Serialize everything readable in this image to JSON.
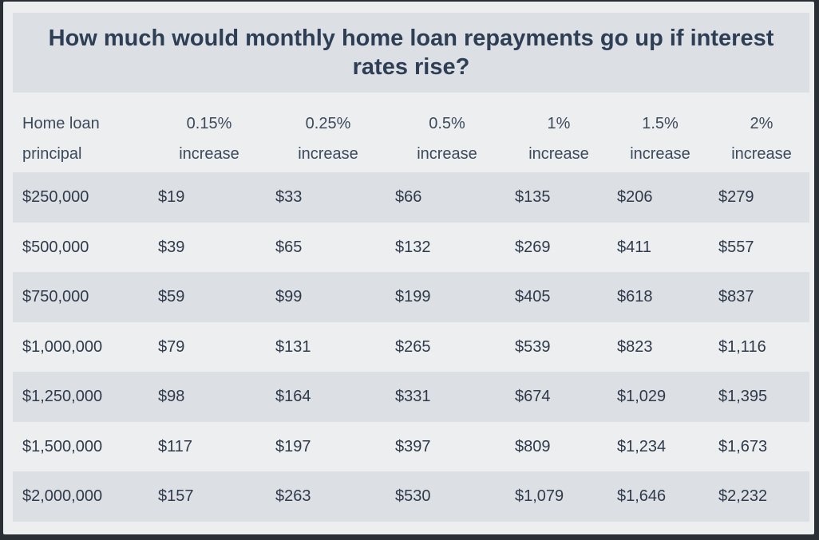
{
  "chart_data": {
    "type": "table",
    "title": "How much would monthly home loan repayments go up if interest rates rise?",
    "columns": [
      {
        "line1": "Home loan",
        "line2": "principal"
      },
      {
        "line1": "0.15%",
        "line2": "increase"
      },
      {
        "line1": "0.25%",
        "line2": "increase"
      },
      {
        "line1": "0.5%",
        "line2": "increase"
      },
      {
        "line1": "1%",
        "line2": "increase"
      },
      {
        "line1": "1.5%",
        "line2": "increase"
      },
      {
        "line1": "2%",
        "line2": "increase"
      }
    ],
    "rows": [
      [
        "$250,000",
        "$19",
        "$33",
        "$66",
        "$135",
        "$206",
        "$279"
      ],
      [
        "$500,000",
        "$39",
        "$65",
        "$132",
        "$269",
        "$411",
        "$557"
      ],
      [
        "$750,000",
        "$59",
        "$99",
        "$199",
        "$405",
        "$618",
        "$837"
      ],
      [
        "$1,000,000",
        "$79",
        "$131",
        "$265",
        "$539",
        "$823",
        "$1,116"
      ],
      [
        "$1,250,000",
        "$98",
        "$164",
        "$331",
        "$674",
        "$1,029",
        "$1,395"
      ],
      [
        "$1,500,000",
        "$117",
        "$197",
        "$397",
        "$809",
        "$1,234",
        "$1,673"
      ],
      [
        "$2,000,000",
        "$157",
        "$263",
        "$530",
        "$1,079",
        "$1,646",
        "$2,232"
      ]
    ]
  }
}
